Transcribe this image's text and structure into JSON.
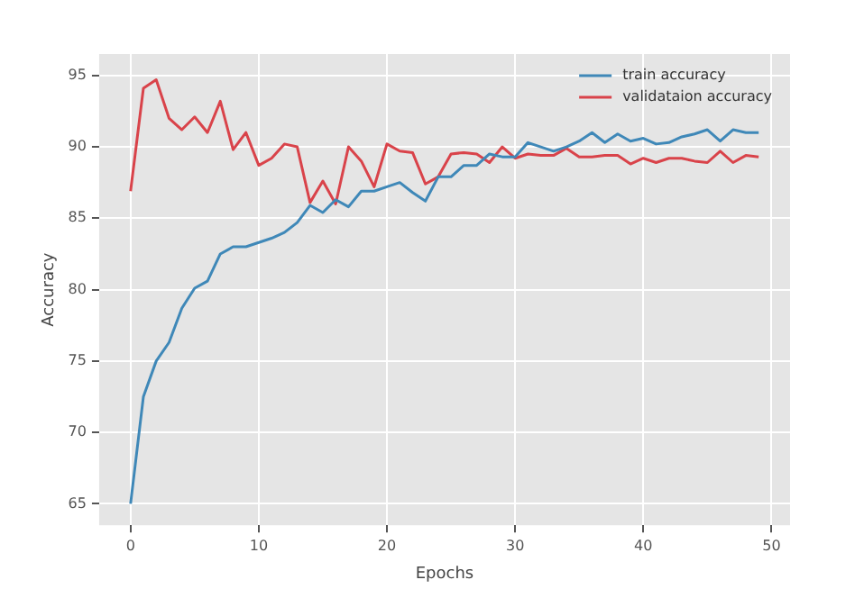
{
  "chart_data": {
    "type": "line",
    "xlabel": "Epochs",
    "ylabel": "Accuracy",
    "x": [
      0,
      1,
      2,
      3,
      4,
      5,
      6,
      7,
      8,
      9,
      10,
      11,
      12,
      13,
      14,
      15,
      16,
      17,
      18,
      19,
      20,
      21,
      22,
      23,
      24,
      25,
      26,
      27,
      28,
      29,
      30,
      31,
      32,
      33,
      34,
      35,
      36,
      37,
      38,
      39,
      40,
      41,
      42,
      43,
      44,
      45,
      46,
      47,
      48,
      49
    ],
    "series": [
      {
        "name": "train accuracy",
        "color": "#3f88b8",
        "values": [
          65,
          72.5,
          75,
          76.3,
          78.7,
          80.1,
          80.6,
          82.5,
          83,
          83,
          83.3,
          83.6,
          84,
          84.7,
          85.9,
          85.4,
          86.3,
          85.8,
          86.9,
          86.9,
          87.2,
          87.5,
          86.8,
          86.2,
          87.9,
          87.9,
          88.7,
          88.7,
          89.5,
          89.3,
          89.3,
          90.3,
          90,
          89.7,
          90,
          90.4,
          91,
          90.3,
          90.9,
          90.4,
          90.6,
          90.2,
          90.3,
          90.7,
          90.9,
          91.2,
          90.4,
          91.2,
          91,
          91
        ]
      },
      {
        "name": "validataion accuracy",
        "color": "#d9434a",
        "values": [
          86.9,
          94.1,
          94.7,
          92,
          91.2,
          92.1,
          91,
          93.2,
          89.8,
          91,
          88.7,
          89.2,
          90.2,
          90,
          86.1,
          87.6,
          86,
          90,
          89,
          87.2,
          90.2,
          89.7,
          89.6,
          87.4,
          87.9,
          89.5,
          89.6,
          89.5,
          88.9,
          90,
          89.2,
          89.5,
          89.4,
          89.4,
          89.9,
          89.3,
          89.3,
          89.4,
          89.4,
          88.8,
          89.2,
          88.9,
          89.2,
          89.2,
          89,
          88.9,
          89.7,
          88.9,
          89.4,
          89.3
        ]
      }
    ],
    "xlim": [
      -2.45,
      51.45
    ],
    "xticks": [
      0,
      10,
      20,
      30,
      40,
      50
    ],
    "ylim": [
      63.5,
      96.5
    ],
    "yticks": [
      65,
      70,
      75,
      80,
      85,
      90,
      95
    ],
    "grid": true,
    "legend": "top right",
    "line_style": "solid",
    "marker": "none"
  }
}
